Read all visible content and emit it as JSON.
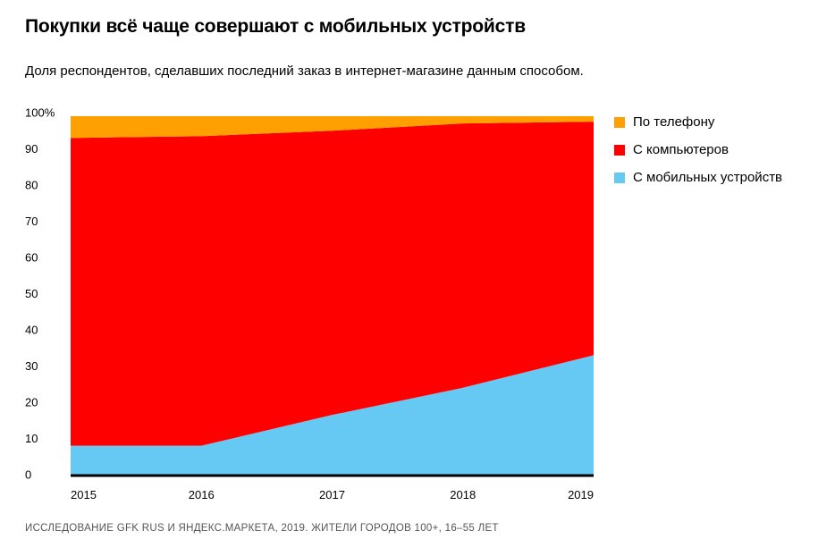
{
  "title": "Покупки всё чаще совершают с мобильных устройств",
  "subtitle": "Доля респондентов, сделавших последний заказ в  интернет-магазине данным способом.",
  "source": "ИССЛЕДОВАНИЕ GFK RUS И ЯНДЕКС.МАРКЕТА, 2019. ЖИТЕЛИ ГОРОДОВ 100+, 16–55 ЛЕТ",
  "chart_data": {
    "type": "area",
    "stacked": true,
    "x": [
      "2015",
      "2016",
      "2017",
      "2018",
      "2019"
    ],
    "y_ticks": [
      "0",
      "10",
      "20",
      "30",
      "40",
      "50",
      "60",
      "70",
      "80",
      "90",
      "100%"
    ],
    "ylim": [
      0,
      100
    ],
    "grid": false,
    "legend_position": "right",
    "series": [
      {
        "name": "С мобильных устройств",
        "color": "#66c9f3",
        "values": [
          8,
          8,
          16.5,
          24,
          33
        ]
      },
      {
        "name": "С компьютеров",
        "color": "#ff0000",
        "values": [
          85,
          85.5,
          78.5,
          73,
          64.5
        ]
      },
      {
        "name": "По телефону",
        "color": "#ff9f00",
        "values": [
          6,
          5.5,
          4,
          2,
          1.5
        ]
      }
    ],
    "legend_order": [
      "По телефону",
      "С компьютеров",
      "С мобильных устройств"
    ]
  }
}
